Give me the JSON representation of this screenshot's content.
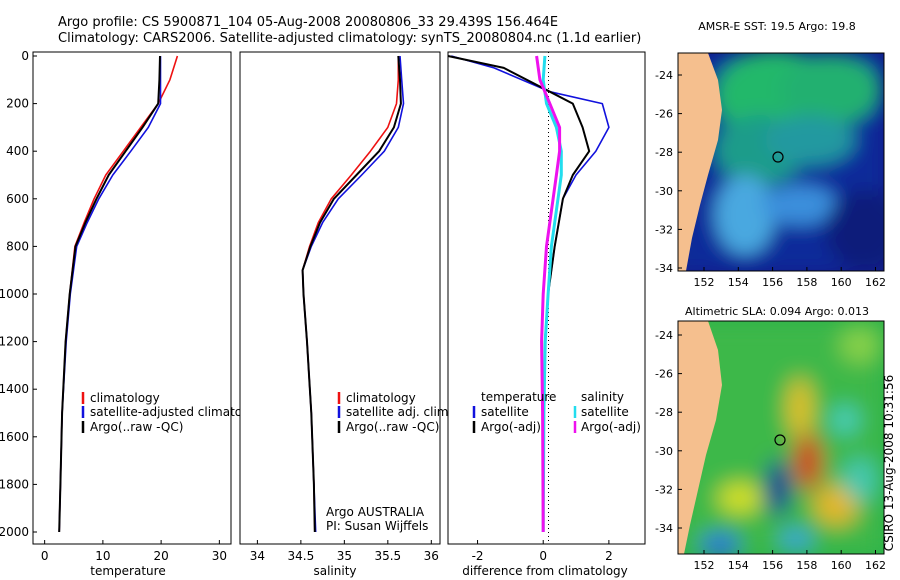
{
  "header": {
    "line1": "Argo profile: CS 5900871_104 05-Aug-2008 20080806_33 29.439S 156.464E",
    "line2": "Climatology: CARS2006. Satellite-adjusted climatology: synTS_20080804.nc (1.1d earlier)"
  },
  "depth_ticks": [
    "0",
    "200",
    "400",
    "600",
    "800",
    "1000",
    "1200",
    "1400",
    "1600",
    "1800",
    "2000"
  ],
  "panels": {
    "temperature": {
      "xlabel": "temperature",
      "xticks": [
        "0",
        "10",
        "20",
        "30"
      ],
      "legend": [
        "climatology",
        "satellite-adjusted climatology",
        "Argo(..raw -QC)"
      ]
    },
    "salinity": {
      "xlabel": "salinity",
      "xticks": [
        "34",
        "34.5",
        "35",
        "35.5",
        "36"
      ],
      "legend": [
        "climatology",
        "satellite adj. clim.",
        "Argo(..raw -QC)"
      ],
      "credit1": "Argo AUSTRALIA",
      "credit2": "PI: Susan Wijffels"
    },
    "difference": {
      "xlabel": "difference from climatology",
      "xticks": [
        "-2",
        "0",
        "2"
      ],
      "legend_t_title": "temperature",
      "legend_s_title": "salinity",
      "legend_t": [
        "satellite",
        "Argo(-adj)"
      ],
      "legend_s": [
        "satellite",
        "Argo(-adj)"
      ]
    }
  },
  "maps": {
    "sst_title": "AMSR-E SST: 19.5 Argo: 19.8",
    "sla_title": "Altimetric SLA: 0.094 Argo: 0.013",
    "lat_ticks": [
      "-24",
      "-26",
      "-28",
      "-30",
      "-32",
      "-34"
    ],
    "lon_ticks": [
      "152",
      "154",
      "156",
      "158",
      "160",
      "162"
    ]
  },
  "footer": "CSIRO 13-Aug-2008 10:31:56",
  "colors": {
    "climatology": "#ee1111",
    "satellite": "#1111dd",
    "argo": "#000000",
    "sat_salinity": "#22ddee",
    "argo_salinity": "#ee11ee",
    "land": "#f5bf8e"
  },
  "chart_data": [
    {
      "type": "line",
      "name": "temperature",
      "xlabel": "temperature",
      "ylabel": "",
      "xlim": [
        -2,
        32
      ],
      "ylim": [
        2050,
        0
      ],
      "y_inverted": true,
      "series": [
        {
          "name": "climatology",
          "color": "red",
          "x": [
            22.8,
            21.5,
            19.5,
            16.5,
            13.5,
            10.5,
            8.5,
            6.8,
            5.2,
            4.3,
            3.6,
            3.0,
            2.7,
            2.5
          ],
          "y": [
            0,
            100,
            200,
            300,
            400,
            500,
            600,
            700,
            800,
            1000,
            1200,
            1500,
            1800,
            2000
          ]
        },
        {
          "name": "satellite-adjusted climatology",
          "color": "blue",
          "x": [
            19.9,
            19.9,
            19.9,
            17.8,
            14.8,
            11.7,
            9.3,
            7.3,
            5.5,
            4.4,
            3.7,
            3.0,
            2.7,
            2.5
          ],
          "y": [
            0,
            100,
            200,
            300,
            400,
            500,
            600,
            700,
            800,
            1000,
            1200,
            1500,
            1800,
            2000
          ]
        },
        {
          "name": "Argo(..raw -QC)",
          "color": "black",
          "x": [
            19.8,
            19.7,
            19.5,
            16.8,
            13.9,
            11.0,
            8.9,
            7.0,
            5.3,
            4.3,
            3.6,
            3.0,
            2.7,
            2.5
          ],
          "y": [
            0,
            100,
            200,
            300,
            400,
            500,
            600,
            700,
            800,
            1000,
            1200,
            1500,
            1800,
            2000
          ]
        }
      ]
    },
    {
      "type": "line",
      "name": "salinity",
      "xlabel": "salinity",
      "ylabel": "",
      "xlim": [
        33.8,
        36.1
      ],
      "ylim": [
        2050,
        0
      ],
      "y_inverted": true,
      "series": [
        {
          "name": "climatology",
          "color": "red",
          "x": [
            35.62,
            35.62,
            35.6,
            35.5,
            35.3,
            35.08,
            34.85,
            34.7,
            34.6,
            34.52,
            34.53,
            34.57,
            34.62,
            34.65,
            34.66
          ],
          "y": [
            0,
            100,
            200,
            300,
            400,
            500,
            600,
            700,
            800,
            900,
            1000,
            1200,
            1500,
            1800,
            2000
          ]
        },
        {
          "name": "satellite adj. clim.",
          "color": "blue",
          "x": [
            35.64,
            35.66,
            35.68,
            35.62,
            35.46,
            35.2,
            34.93,
            34.75,
            34.62,
            34.52,
            34.53,
            34.57,
            34.62,
            34.65,
            34.67
          ],
          "y": [
            0,
            100,
            200,
            300,
            400,
            500,
            600,
            700,
            800,
            900,
            1000,
            1200,
            1500,
            1800,
            2000
          ]
        },
        {
          "name": "Argo(..raw -QC)",
          "color": "black",
          "x": [
            35.62,
            35.64,
            35.65,
            35.57,
            35.4,
            35.14,
            34.88,
            34.72,
            34.61,
            34.52,
            34.53,
            34.57,
            34.62,
            34.65,
            34.66
          ],
          "y": [
            0,
            100,
            200,
            300,
            400,
            500,
            600,
            700,
            800,
            900,
            1000,
            1200,
            1500,
            1800,
            2000
          ]
        }
      ]
    },
    {
      "type": "line",
      "name": "difference from climatology",
      "xlabel": "difference from climatology",
      "ylabel": "",
      "xlim": [
        -2.9,
        3.1
      ],
      "ylim": [
        2050,
        0
      ],
      "y_inverted": true,
      "reference_line_x": 0,
      "series": [
        {
          "name": "temperature satellite",
          "color": "blue",
          "x": [
            -2.8,
            -1.5,
            0.2,
            1.8,
            2.0,
            1.6,
            1.0,
            0.6,
            0.35,
            0.15,
            0.05,
            0.02,
            0.0
          ],
          "y": [
            0,
            50,
            150,
            200,
            300,
            400,
            500,
            600,
            800,
            1000,
            1200,
            1500,
            2000
          ]
        },
        {
          "name": "temperature Argo(-adj)",
          "color": "black",
          "x": [
            -2.9,
            -1.2,
            0.2,
            0.9,
            1.2,
            1.4,
            0.9,
            0.6,
            0.35,
            0.15,
            0.05,
            0.02,
            0.0
          ],
          "y": [
            0,
            50,
            150,
            200,
            300,
            400,
            500,
            600,
            800,
            1000,
            1200,
            1500,
            2000
          ]
        },
        {
          "name": "salinity satellite",
          "color": "cyan",
          "x": [
            0.05,
            0.0,
            0.1,
            0.4,
            0.55,
            0.55,
            0.45,
            0.35,
            0.25,
            0.15,
            0.06,
            0.02,
            0.0
          ],
          "y": [
            0,
            100,
            200,
            300,
            400,
            500,
            600,
            700,
            800,
            1000,
            1200,
            1500,
            2000
          ]
        },
        {
          "name": "salinity Argo(-adj)",
          "color": "magenta",
          "x": [
            -0.2,
            -0.1,
            0.2,
            0.5,
            0.5,
            0.4,
            0.3,
            0.2,
            0.1,
            0.0,
            -0.05,
            -0.02,
            0.0
          ],
          "y": [
            0,
            100,
            200,
            300,
            400,
            500,
            600,
            700,
            800,
            1000,
            1200,
            1500,
            2000
          ]
        }
      ]
    }
  ]
}
